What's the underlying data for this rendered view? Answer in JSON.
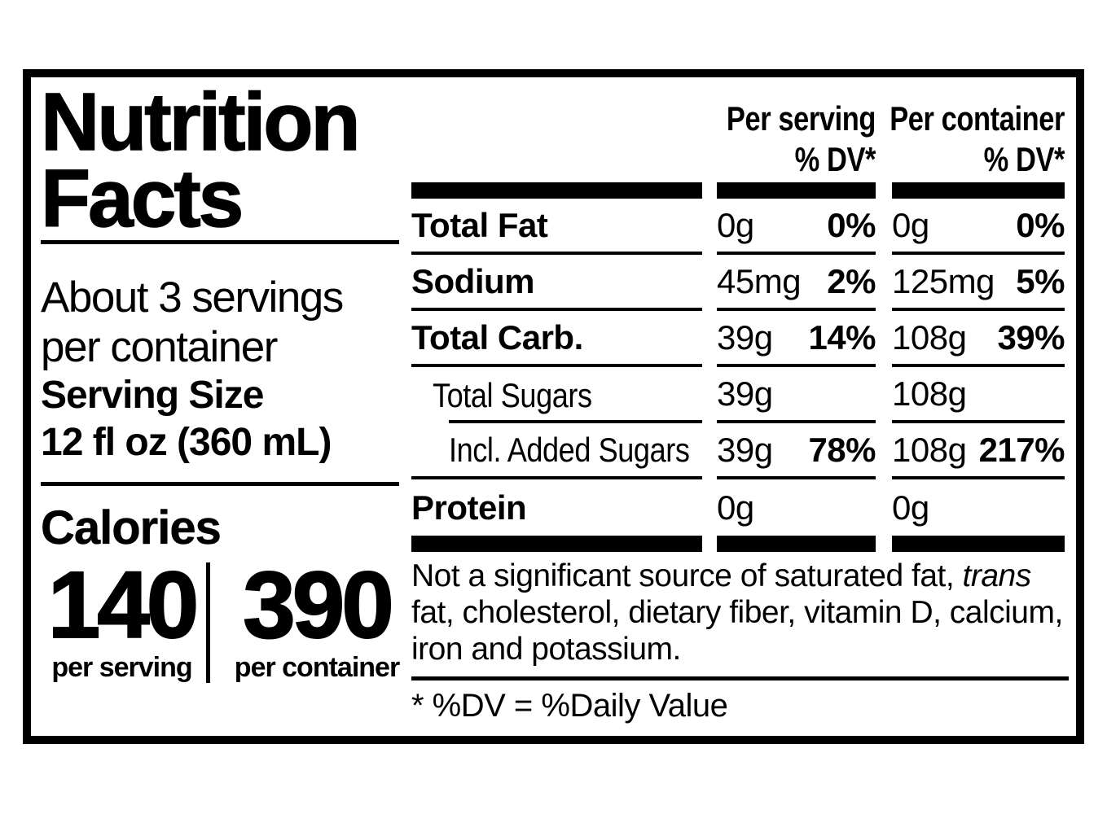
{
  "colors": {
    "ink": "#000000",
    "paper": "#ffffff"
  },
  "title": {
    "line1": "Nutrition",
    "line2": "Facts"
  },
  "servings_per_container": {
    "line1": "About 3 servings",
    "line2": "per container"
  },
  "serving_size": {
    "label": "Serving Size",
    "value": "12 fl oz (360 mL)"
  },
  "calories": {
    "heading": "Calories",
    "per_serving": {
      "value": "140",
      "label": "per serving"
    },
    "per_container": {
      "value": "390",
      "label": "per container"
    }
  },
  "table": {
    "headers": {
      "serving": {
        "line1": "Per serving",
        "line2": "% DV*"
      },
      "container": {
        "line1": "Per container",
        "line2": "% DV*"
      }
    },
    "rows": [
      {
        "label": "Total Fat",
        "serving_amount": "0g",
        "serving_dv": "0%",
        "container_amount": "0g",
        "container_dv": "0%"
      },
      {
        "label": "Sodium",
        "serving_amount": "45mg",
        "serving_dv": "2%",
        "container_amount": "125mg",
        "container_dv": "5%"
      },
      {
        "label": "Total Carb.",
        "serving_amount": "39g",
        "serving_dv": "14%",
        "container_amount": "108g",
        "container_dv": "39%"
      },
      {
        "label": "Total Sugars",
        "serving_amount": "39g",
        "serving_dv": "",
        "container_amount": "108g",
        "container_dv": ""
      },
      {
        "label": "Incl. Added Sugars",
        "serving_amount": "39g",
        "serving_dv": "78%",
        "container_amount": "108g",
        "container_dv": "217%"
      },
      {
        "label": "Protein",
        "serving_amount": "0g",
        "serving_dv": "",
        "container_amount": "0g",
        "container_dv": ""
      }
    ]
  },
  "footnote": {
    "prefix": "Not a significant source of saturated fat, ",
    "italic": "trans",
    "suffix": " fat, cholesterol, dietary fiber, vitamin D, calcium, iron and potassium.",
    "dv_definition": "* %DV = %Daily Value"
  }
}
